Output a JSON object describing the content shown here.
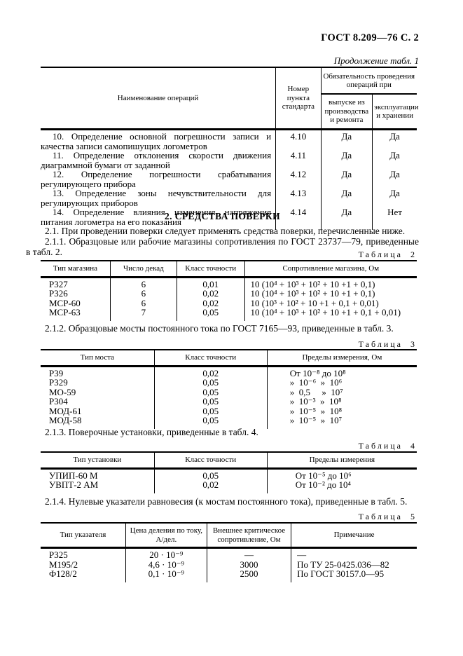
{
  "colors": {
    "background": "#ffffff",
    "text": "#000000"
  },
  "page": {
    "header": "ГОСТ 8.209—76 С. 2",
    "continuation": "Продолжение табл. 1"
  },
  "table1": {
    "col_operations": "Наименование операций",
    "col_clause": "Номер пункта стандарта",
    "col_group": "Обязательность проведения операций при",
    "col_sub1": "выпуске из производства и ремонта",
    "col_sub2": "эксплуатации и хранении",
    "rows": [
      [
        "10. Определение основной погрешности записи и качества записи самопишущих логометров",
        "4.10",
        "Да",
        "Да"
      ],
      [
        "11. Определение отклонения скорости движения диаграммной бумаги от заданной",
        "4.11",
        "Да",
        "Да"
      ],
      [
        "12. Определение погрешности срабатывания регулирующего прибора",
        "4.12",
        "Да",
        "Да"
      ],
      [
        "13. Определение зоны нечувствительности для регулирующих приборов",
        "4.13",
        "Да",
        "Да"
      ],
      [
        "14. Определение влияния изменения напряжения питания логометра на его показания",
        "4.14",
        "Да",
        "Нет"
      ]
    ]
  },
  "section": {
    "title": "2. СРЕДСТВА ПОВЕРКИ",
    "p21": "2.1. При проведении поверки следует применять средства поверки, перечисленные ниже.",
    "p211": "2.1.1. Образцовые или рабочие магазины сопротивления по ГОСТ 23737—79, приведенные в табл. 2.",
    "p212": "2.1.2. Образцовые мосты постоянного тока по ГОСТ 7165—93, приведенные в табл. 3.",
    "p213": "2.1.3. Поверочные установки, приведенные в табл. 4.",
    "p214": "2.1.4. Нулевые указатели равновесия (к мостам постоянного тока), приведенные в табл. 5."
  },
  "table2": {
    "caption": "Таблица 2",
    "headers": [
      "Тип магазина",
      "Число декад",
      "Класс точности",
      "Сопротивление магазина, Ом"
    ],
    "rows": [
      [
        "Р327",
        "6",
        "0,01",
        "10 (10⁴ + 10³ + 10² + 10 +1 + 0,1)"
      ],
      [
        "Р326",
        "6",
        "0,02",
        "10 (10⁴ + 10³ + 10² + 10 +1 + 0,1)"
      ],
      [
        "МСР-60",
        "6",
        "0,02",
        "10 (10³ + 10² + 10 +1 + 0,1 + 0,01)"
      ],
      [
        "МСР-63",
        "7",
        "0,05",
        "10 (10⁴ + 10³ + 10² + 10 +1 + 0,1 + 0,01)"
      ]
    ]
  },
  "table3": {
    "caption": "Таблица 3",
    "headers": [
      "Тип моста",
      "Класс точности",
      "Пределы измерения, Ом"
    ],
    "rows": [
      [
        "Р39",
        "0,02",
        "От 10⁻⁸ до 10⁸"
      ],
      [
        "Р329",
        "0,05",
        "»  10⁻⁶  »  10⁶"
      ],
      [
        "МО-59",
        "0,05",
        "»  0,5     »  10⁷"
      ],
      [
        "Р304",
        "0,05",
        "»  10⁻³  »  10⁸"
      ],
      [
        "МОД-61",
        "0,05",
        "»  10⁻⁵  »  10⁸"
      ],
      [
        "МОД-58",
        "0,05",
        "»  10⁻⁵  »  10⁷"
      ]
    ]
  },
  "table4": {
    "caption": "Таблица 4",
    "headers": [
      "Тип установки",
      "Класс точности",
      "Пределы измерения"
    ],
    "rows": [
      [
        "УПИП-60 М",
        "0,05",
        "От 10⁻⁵ до 10⁶"
      ],
      [
        "УВПТ-2 АМ",
        "0,02",
        "От 10⁻² до 10⁴"
      ]
    ]
  },
  "table5": {
    "caption": "Таблица 5",
    "headers": [
      "Тип указателя",
      "Цена деления по току, А/дел.",
      "Внешнее критическое сопротивление, Ом",
      "Примечание"
    ],
    "rows": [
      [
        "Р325",
        "20 · 10⁻⁹",
        "—",
        "—"
      ],
      [
        "М195/2",
        "4,6 · 10⁻⁹",
        "3000",
        "По ТУ 25-0425.036—82"
      ],
      [
        "Ф128/2",
        "0,1 · 10⁻⁹",
        "2500",
        "По ГОСТ 30157.0—95"
      ]
    ]
  }
}
